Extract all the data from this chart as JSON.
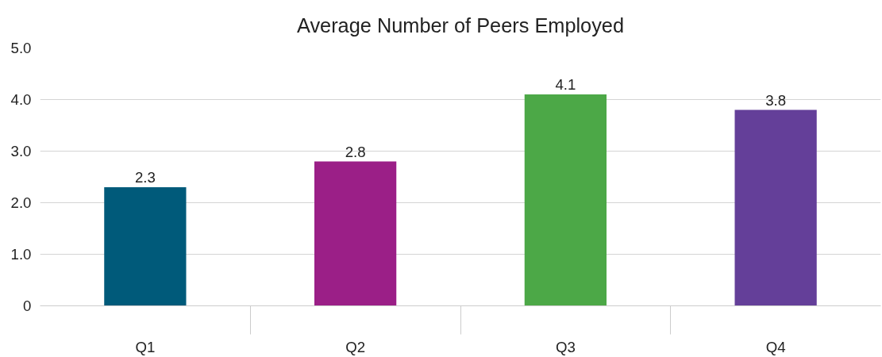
{
  "chart_data": {
    "type": "bar",
    "title": "Average Number of Peers Employed",
    "categories": [
      "Q1",
      "Q2",
      "Q3",
      "Q4"
    ],
    "values": [
      2.3,
      2.8,
      4.1,
      3.8
    ],
    "colors": [
      "#005a7a",
      "#9b1f87",
      "#4ca847",
      "#643f99"
    ],
    "ylim": [
      0,
      5
    ],
    "yticks": [
      0,
      {
        "value": 1,
        "label": "1.0"
      },
      {
        "value": 2,
        "label": "2.0"
      },
      {
        "value": 3,
        "label": "3.0"
      },
      {
        "value": 4,
        "label": "4.0"
      },
      {
        "value": 5,
        "label": "5.0"
      }
    ],
    "grid": "y",
    "data_labels": true
  }
}
